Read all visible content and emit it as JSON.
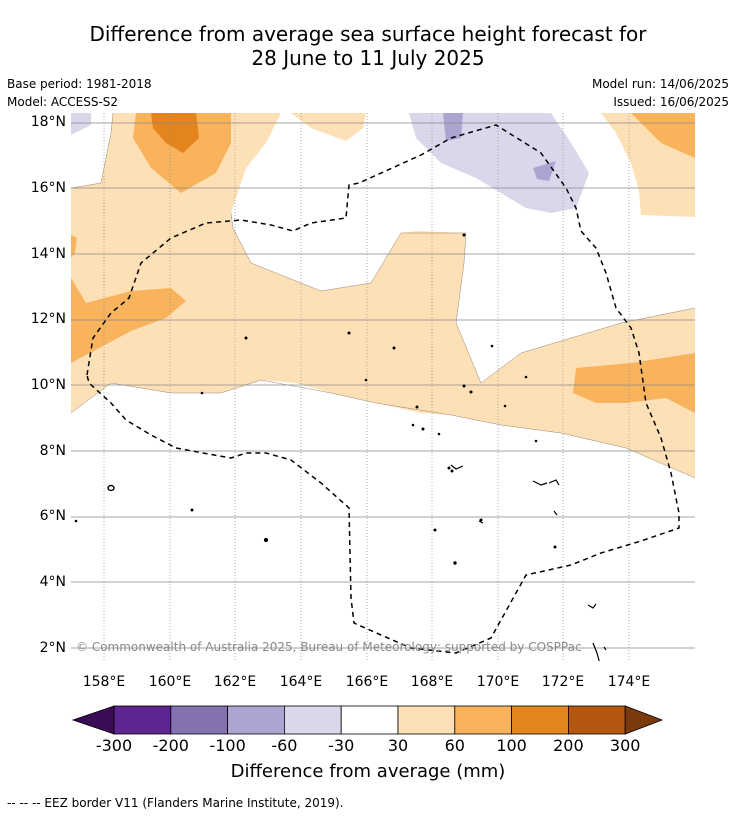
{
  "title": {
    "line1": "Difference from average sea surface height forecast for",
    "line2": "28 June to 11 July 2025"
  },
  "meta": {
    "base_period": "Base period: 1981-2018",
    "model": "Model: ACCESS-S2",
    "model_run": "Model run: 14/06/2025",
    "issued": "Issued: 16/06/2025"
  },
  "map": {
    "lat_labels": [
      "18°N",
      "16°N",
      "14°N",
      "12°N",
      "10°N",
      "8°N",
      "6°N",
      "4°N",
      "2°N"
    ],
    "lon_labels": [
      "158°E",
      "160°E",
      "162°E",
      "164°E",
      "166°E",
      "168°E",
      "170°E",
      "172°E",
      "174°E"
    ],
    "copyright": "© Commonwealth of Australia 2025, Bureau of Meteorology; supported by COSPPac",
    "colors": {
      "pos_30_60": "#fde0b6",
      "pos_60_100": "#f9b35c",
      "pos_100_200": "#e3841c",
      "neg_30_60": "#d8d8ea",
      "neg_60_100": "#ada5d1"
    }
  },
  "colorbar": {
    "ticks": [
      "-300",
      "-200",
      "-100",
      "-60",
      "-30",
      "30",
      "60",
      "100",
      "200",
      "300"
    ],
    "colors": [
      "#3a0c55",
      "#5e2590",
      "#8472b0",
      "#ada5d1",
      "#d8d8ea",
      "#ffffff",
      "#fde0b6",
      "#f9b35c",
      "#e3841c",
      "#b4560e",
      "#7b3a0d"
    ],
    "label": "Difference from average (mm)"
  },
  "footnote": "--  --  -- EEZ border V11 (Flanders Marine Institute, 2019)."
}
